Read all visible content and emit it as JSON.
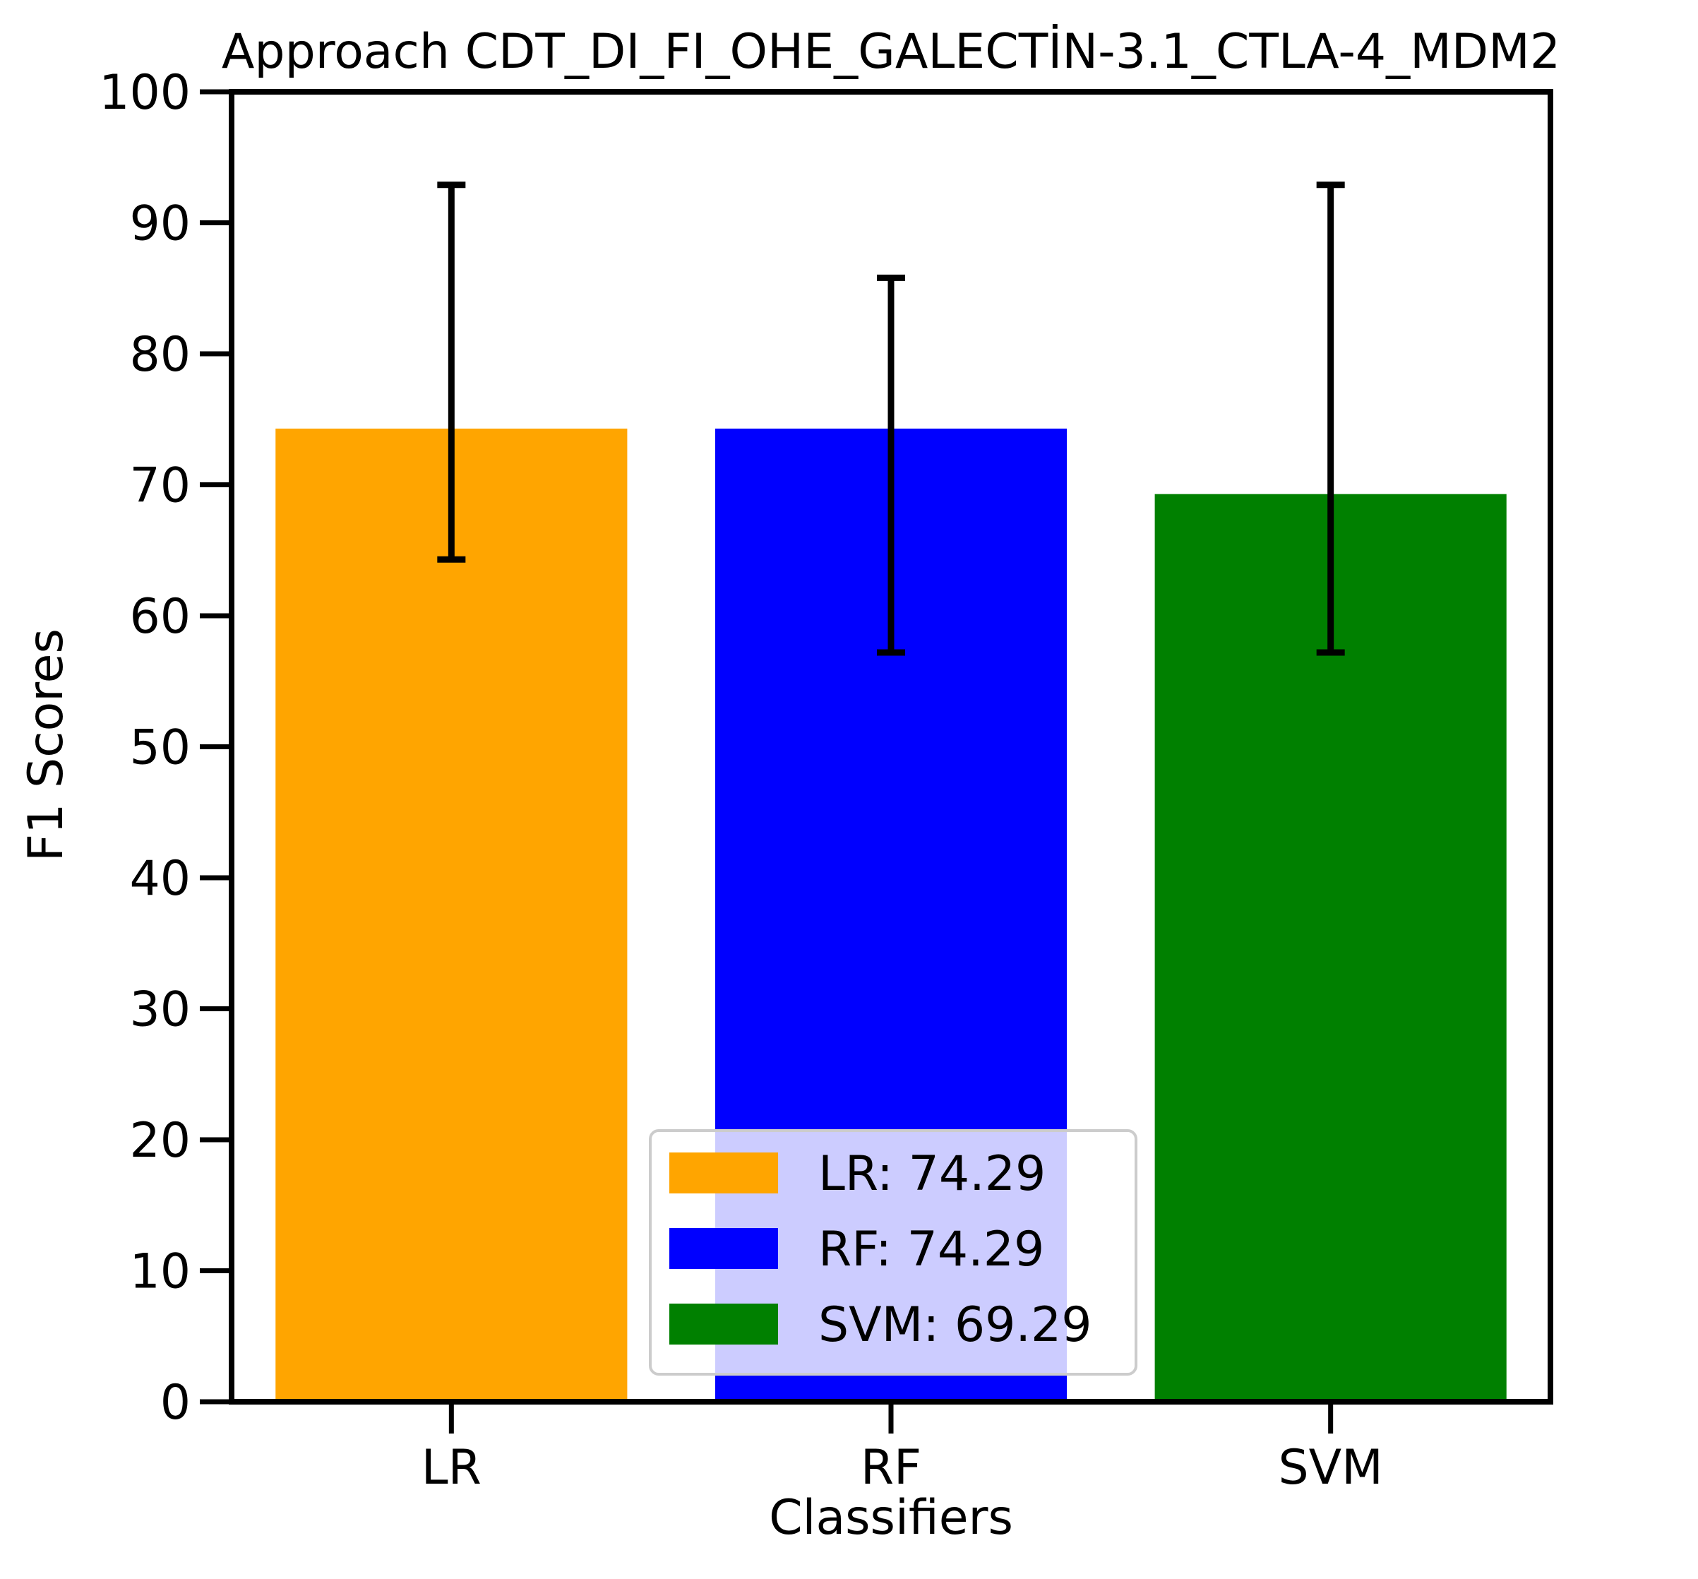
{
  "chart_data": {
    "type": "bar",
    "title": "Approach CDT_DI_FI_OHE_GALECTİN-3.1_CTLA-4_MDM2",
    "xlabel": "Classifiers",
    "ylabel": "F1 Scores",
    "categories": [
      "LR",
      "RF",
      "SVM"
    ],
    "values": [
      74.29,
      74.29,
      69.29
    ],
    "error_low": [
      64.3,
      57.2,
      57.2
    ],
    "error_high": [
      92.9,
      85.8,
      92.9
    ],
    "colors": [
      "#ffa500",
      "#0000ff",
      "#008000"
    ],
    "ylim": [
      0,
      100
    ],
    "yticks": [
      0,
      10,
      20,
      30,
      40,
      50,
      60,
      70,
      80,
      90,
      100
    ],
    "grid": false,
    "legend": {
      "position": "lower-center",
      "entries": [
        "LR: 74.29",
        "RF: 74.29",
        "SVM: 69.29"
      ]
    }
  }
}
